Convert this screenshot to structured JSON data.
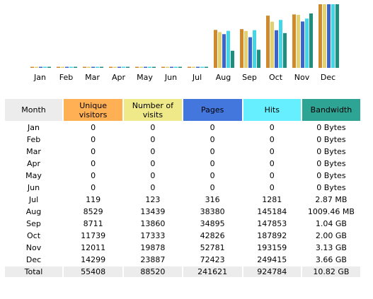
{
  "chart_data": {
    "type": "bar",
    "categories": [
      "Jan",
      "Feb",
      "Mar",
      "Apr",
      "May",
      "Jun",
      "Jul",
      "Aug",
      "Sep",
      "Oct",
      "Nov",
      "Dec"
    ],
    "series": [
      {
        "name": "Unique visitors",
        "values": [
          0,
          0,
          0,
          0,
          0,
          0,
          119,
          8529,
          8711,
          11739,
          12011,
          14299
        ]
      },
      {
        "name": "Number of visits",
        "values": [
          0,
          0,
          0,
          0,
          0,
          0,
          123,
          13439,
          13860,
          17333,
          19878,
          23887
        ]
      },
      {
        "name": "Pages",
        "values": [
          0,
          0,
          0,
          0,
          0,
          0,
          316,
          38380,
          34895,
          42826,
          52781,
          72423
        ]
      },
      {
        "name": "Hits",
        "values": [
          0,
          0,
          0,
          0,
          0,
          0,
          1281,
          145184,
          147853,
          187892,
          193159,
          249415
        ]
      },
      {
        "name": "Bandwidth",
        "values": [
          0,
          0,
          0,
          0,
          0,
          0,
          2.87,
          1009.46,
          1065,
          2048,
          3205,
          3748
        ]
      }
    ],
    "colors": [
      "#d08a2c",
      "#e3d06e",
      "#3a66cc",
      "#44d6e6",
      "#1e8f7f"
    ]
  },
  "table": {
    "headers": {
      "month": "Month",
      "unique": [
        "Unique",
        "visitors"
      ],
      "visits": [
        "Number of",
        "visits"
      ],
      "pages": "Pages",
      "hits": "Hits",
      "bandwidth": "Bandwidth"
    },
    "rows": [
      [
        "Jan",
        "0",
        "0",
        "0",
        "0",
        "0 Bytes"
      ],
      [
        "Feb",
        "0",
        "0",
        "0",
        "0",
        "0 Bytes"
      ],
      [
        "Mar",
        "0",
        "0",
        "0",
        "0",
        "0 Bytes"
      ],
      [
        "Apr",
        "0",
        "0",
        "0",
        "0",
        "0 Bytes"
      ],
      [
        "May",
        "0",
        "0",
        "0",
        "0",
        "0 Bytes"
      ],
      [
        "Jun",
        "0",
        "0",
        "0",
        "0",
        "0 Bytes"
      ],
      [
        "Jul",
        "119",
        "123",
        "316",
        "1281",
        "2.87 MB"
      ],
      [
        "Aug",
        "8529",
        "13439",
        "38380",
        "145184",
        "1009.46 MB"
      ],
      [
        "Sep",
        "8711",
        "13860",
        "34895",
        "147853",
        "1.04 GB"
      ],
      [
        "Oct",
        "11739",
        "17333",
        "42826",
        "187892",
        "2.00 GB"
      ],
      [
        "Nov",
        "12011",
        "19878",
        "52781",
        "193159",
        "3.13 GB"
      ],
      [
        "Dec",
        "14299",
        "23887",
        "72423",
        "249415",
        "3.66 GB"
      ]
    ],
    "total": [
      "Total",
      "55408",
      "88520",
      "241621",
      "924784",
      "10.82 GB"
    ]
  }
}
